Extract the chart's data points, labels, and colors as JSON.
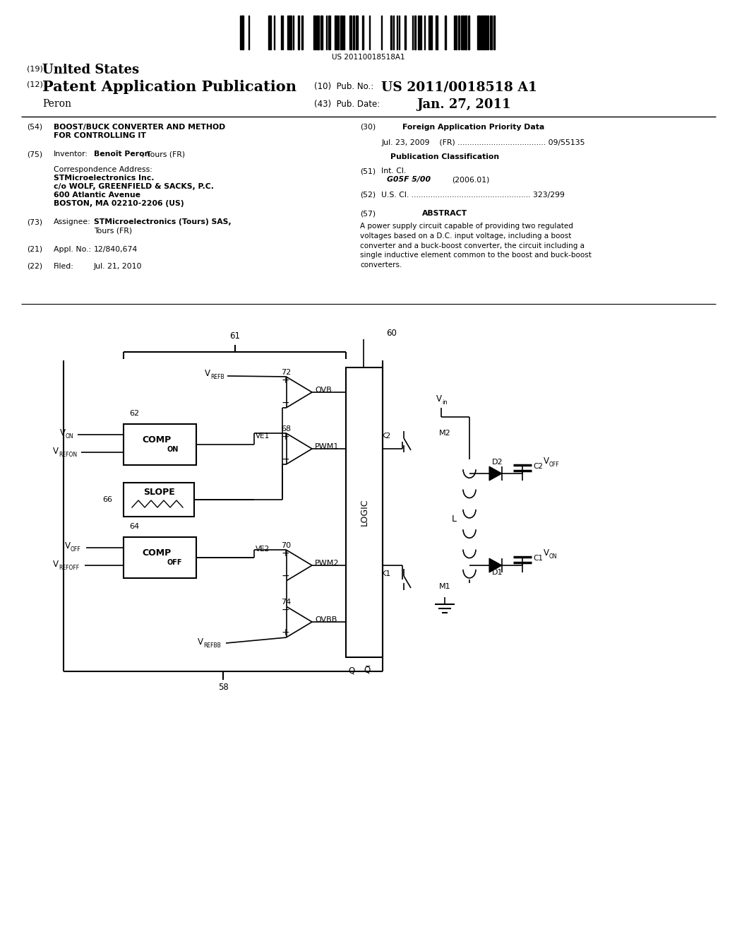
{
  "background_color": "#ffffff",
  "barcode_text": "US 20110018518A1"
}
